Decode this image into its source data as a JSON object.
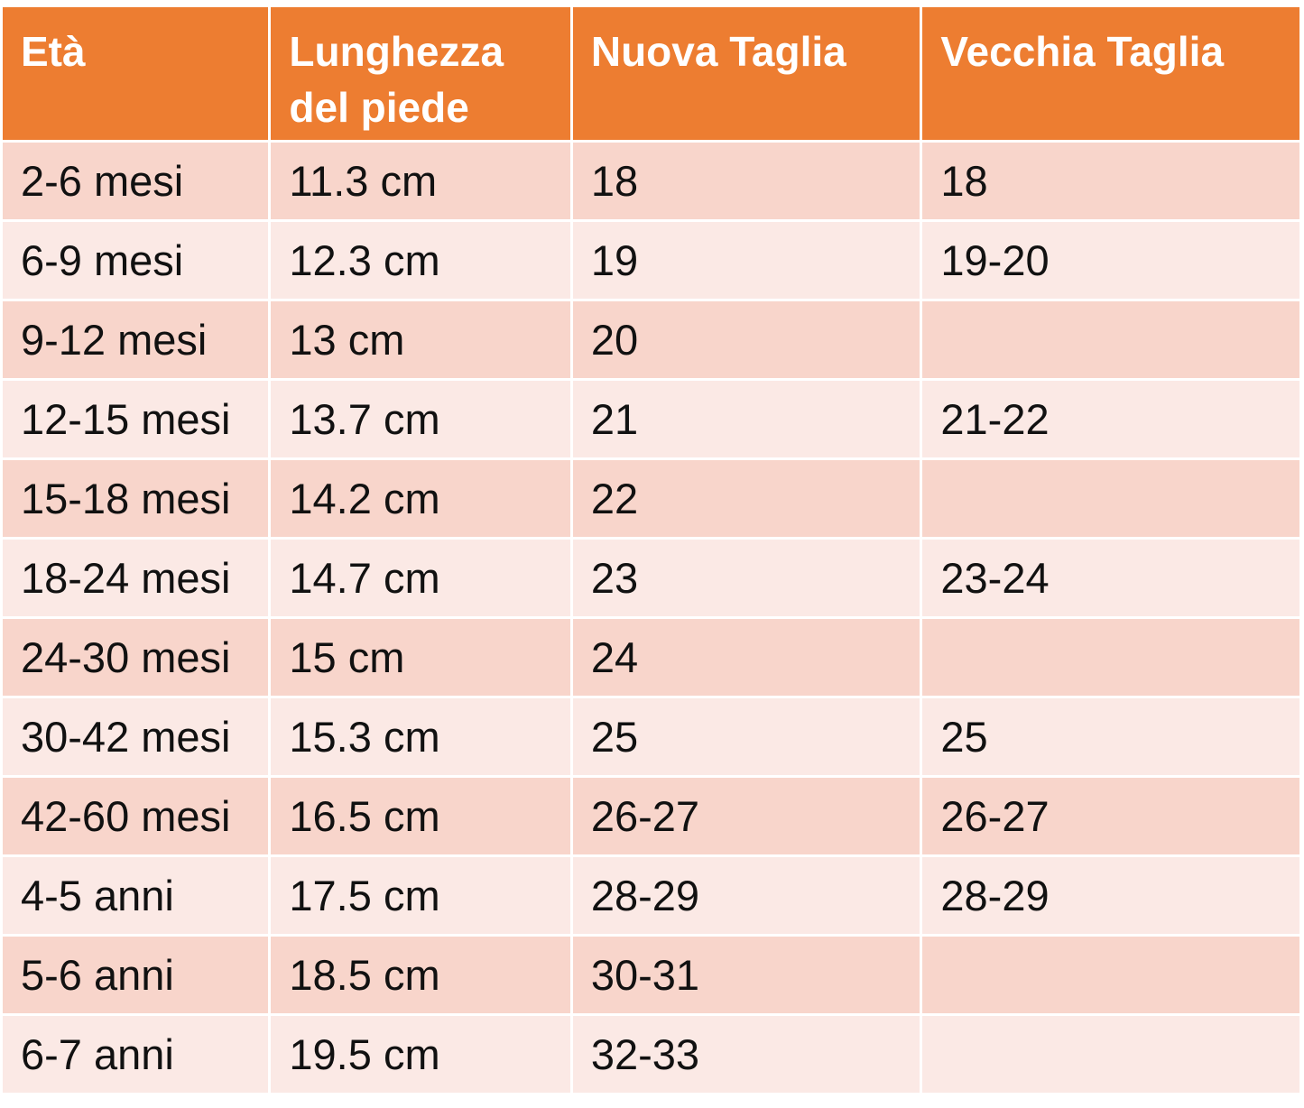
{
  "table": {
    "header": [
      "Età",
      "Lunghezza del piede",
      "Nuova Taglia",
      "Vecchia Taglia"
    ],
    "rows": [
      [
        "2-6 mesi",
        "11.3 cm",
        "18",
        "18"
      ],
      [
        "6-9 mesi",
        "12.3 cm",
        "19",
        "19-20"
      ],
      [
        "9-12 mesi",
        "13 cm",
        "20",
        null
      ],
      [
        "12-15 mesi",
        "13.7 cm",
        "21",
        "21-22"
      ],
      [
        "15-18 mesi",
        "14.2 cm",
        "22",
        null
      ],
      [
        "18-24 mesi",
        "14.7 cm",
        "23",
        "23-24"
      ],
      [
        "24-30 mesi",
        "15 cm",
        "24",
        null
      ],
      [
        "30-42 mesi",
        "15.3 cm",
        "25",
        "25"
      ],
      [
        "42-60 mesi",
        "16.5 cm",
        "26-27",
        "26-27"
      ],
      [
        "4-5 anni",
        "17.5 cm",
        "28-29",
        "28-29"
      ],
      [
        "5-6 anni",
        "18.5 cm",
        "30-31",
        null
      ],
      [
        "6-7 anni",
        "19.5 cm",
        "32-33",
        null
      ]
    ]
  }
}
